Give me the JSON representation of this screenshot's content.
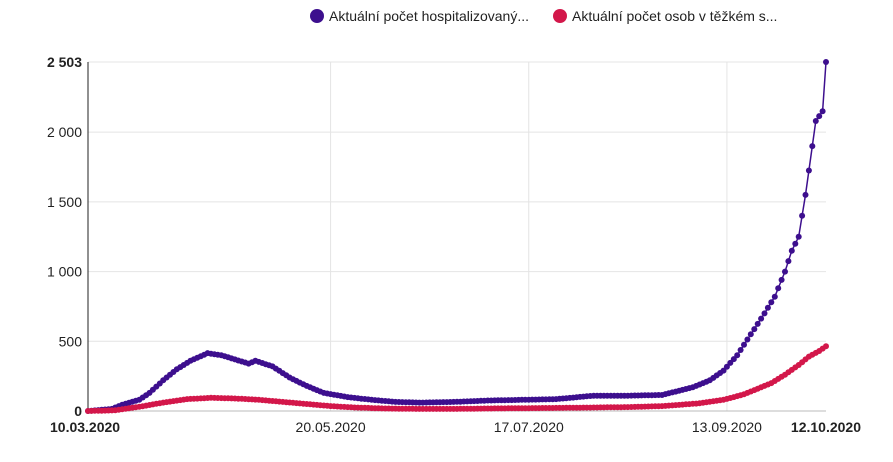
{
  "chart_data": {
    "type": "line",
    "x_type": "date",
    "x_range": [
      "10.03.2020",
      "12.10.2020"
    ],
    "x_ticks": [
      {
        "label": "10.03.2020",
        "bold": true
      },
      {
        "label": "20.05.2020",
        "bold": false
      },
      {
        "label": "17.07.2020",
        "bold": false
      },
      {
        "label": "13.09.2020",
        "bold": false
      },
      {
        "label": "12.10.2020",
        "bold": true
      }
    ],
    "y_ticks": [
      {
        "value": 0,
        "label": "0",
        "bold": true
      },
      {
        "value": 500,
        "label": "500",
        "bold": false
      },
      {
        "value": 1000,
        "label": "1 000",
        "bold": false
      },
      {
        "value": 1500,
        "label": "1 500",
        "bold": false
      },
      {
        "value": 2000,
        "label": "2 000",
        "bold": false
      },
      {
        "value": 2503,
        "label": "2 503",
        "bold": true
      }
    ],
    "ylim": [
      0,
      2503
    ],
    "grid": true,
    "legend_position": "top",
    "series": [
      {
        "name": "Aktuální počet hospitalizovaný...",
        "color": "#3d0f8e",
        "points": [
          [
            "10.03.2020",
            0
          ],
          [
            "17.03.2020",
            15
          ],
          [
            "20.03.2020",
            45
          ],
          [
            "25.03.2020",
            80
          ],
          [
            "28.03.2020",
            130
          ],
          [
            "01.04.2020",
            220
          ],
          [
            "05.04.2020",
            300
          ],
          [
            "09.04.2020",
            360
          ],
          [
            "14.04.2020",
            415
          ],
          [
            "18.04.2020",
            400
          ],
          [
            "22.04.2020",
            370
          ],
          [
            "26.04.2020",
            340
          ],
          [
            "28.04.2020",
            360
          ],
          [
            "03.05.2020",
            320
          ],
          [
            "08.05.2020",
            240
          ],
          [
            "13.05.2020",
            180
          ],
          [
            "18.05.2020",
            130
          ],
          [
            "25.05.2020",
            100
          ],
          [
            "01.06.2020",
            80
          ],
          [
            "08.06.2020",
            65
          ],
          [
            "15.06.2020",
            60
          ],
          [
            "25.06.2020",
            65
          ],
          [
            "05.07.2020",
            75
          ],
          [
            "15.07.2020",
            80
          ],
          [
            "25.07.2020",
            85
          ],
          [
            "05.08.2020",
            110
          ],
          [
            "15.08.2020",
            110
          ],
          [
            "25.08.2020",
            115
          ],
          [
            "03.09.2020",
            170
          ],
          [
            "08.09.2020",
            220
          ],
          [
            "12.09.2020",
            290
          ],
          [
            "16.09.2020",
            400
          ],
          [
            "20.09.2020",
            550
          ],
          [
            "24.09.2020",
            700
          ],
          [
            "27.09.2020",
            820
          ],
          [
            "30.09.2020",
            1000
          ],
          [
            "02.10.2020",
            1150
          ],
          [
            "04.10.2020",
            1250
          ],
          [
            "06.10.2020",
            1550
          ],
          [
            "08.10.2020",
            1900
          ],
          [
            "09.10.2020",
            2080
          ],
          [
            "11.10.2020",
            2150
          ],
          [
            "12.10.2020",
            2503
          ]
        ]
      },
      {
        "name": "Aktuální počet osob v těžkém s...",
        "color": "#d3174a",
        "points": [
          [
            "10.03.2020",
            0
          ],
          [
            "18.03.2020",
            5
          ],
          [
            "25.03.2020",
            30
          ],
          [
            "01.04.2020",
            60
          ],
          [
            "08.04.2020",
            85
          ],
          [
            "15.04.2020",
            95
          ],
          [
            "22.04.2020",
            90
          ],
          [
            "29.04.2020",
            80
          ],
          [
            "06.05.2020",
            65
          ],
          [
            "13.05.2020",
            50
          ],
          [
            "20.05.2020",
            35
          ],
          [
            "27.05.2020",
            25
          ],
          [
            "05.06.2020",
            18
          ],
          [
            "15.06.2020",
            15
          ],
          [
            "25.06.2020",
            15
          ],
          [
            "05.07.2020",
            18
          ],
          [
            "15.07.2020",
            20
          ],
          [
            "25.07.2020",
            22
          ],
          [
            "05.08.2020",
            25
          ],
          [
            "15.08.2020",
            28
          ],
          [
            "25.08.2020",
            35
          ],
          [
            "05.09.2020",
            55
          ],
          [
            "12.09.2020",
            80
          ],
          [
            "18.09.2020",
            120
          ],
          [
            "22.09.2020",
            160
          ],
          [
            "26.09.2020",
            200
          ],
          [
            "30.09.2020",
            260
          ],
          [
            "04.10.2020",
            330
          ],
          [
            "07.10.2020",
            390
          ],
          [
            "10.10.2020",
            430
          ],
          [
            "12.10.2020",
            465
          ]
        ]
      }
    ]
  }
}
